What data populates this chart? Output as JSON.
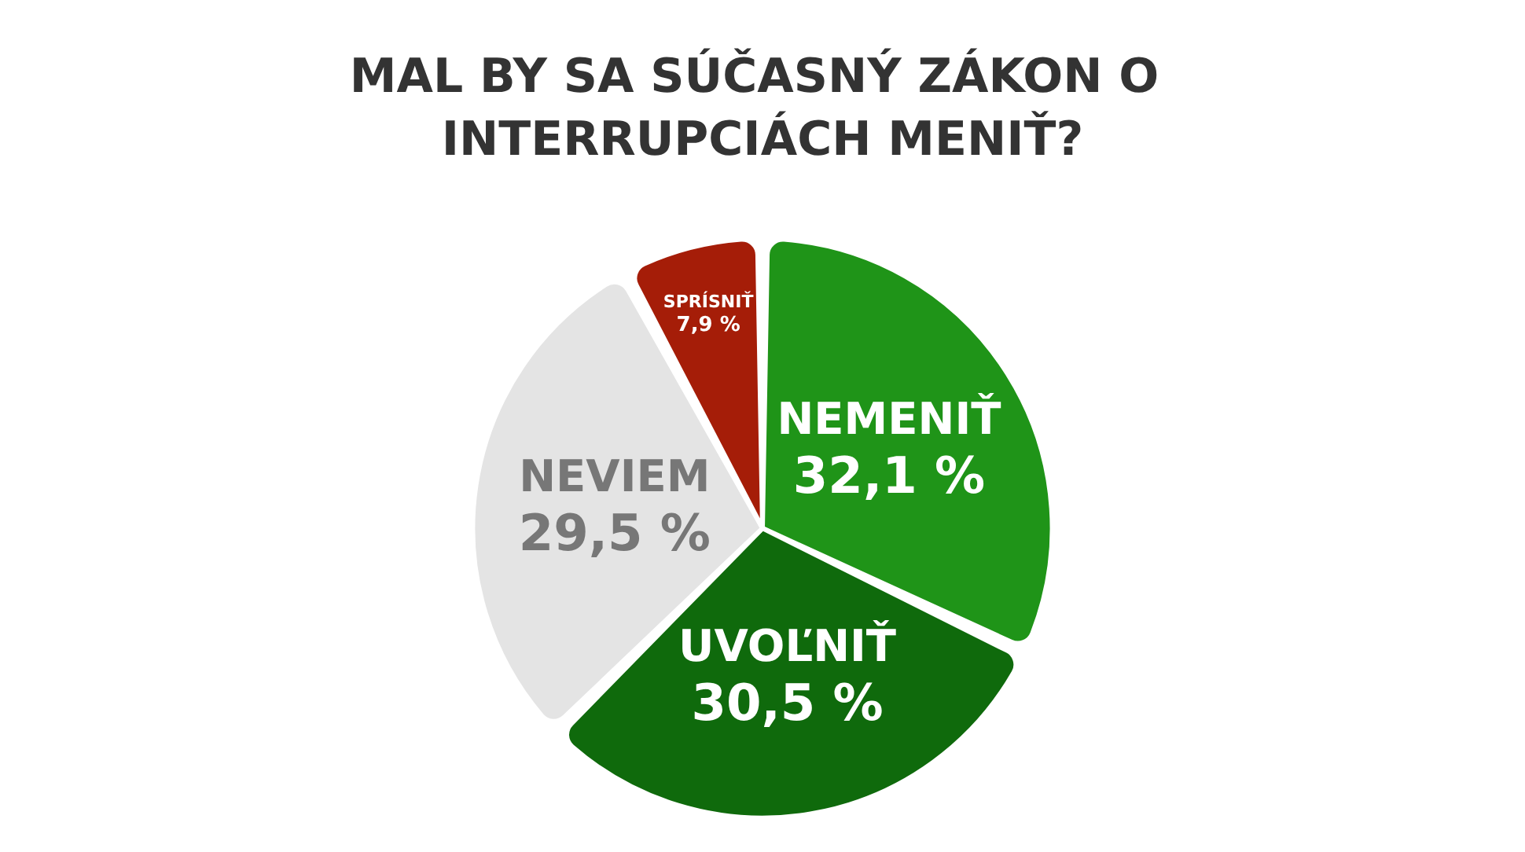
{
  "chart_data": {
    "type": "pie",
    "title": "MAL BY SA SÚČASNÝ ZÁKON O INTERRUPCIÁCH MENIŤ?",
    "categories": [
      "NEMENIŤ",
      "UVOĽNIŤ",
      "NEVIEM",
      "SPRÍSNIŤ"
    ],
    "values": [
      32.1,
      30.5,
      29.5,
      7.9
    ],
    "value_labels": [
      "32,1 %",
      "30,5 %",
      "29,5 %",
      "7,9 %"
    ],
    "colors": [
      "#1f9418",
      "#0f6a0c",
      "#e4e4e4",
      "#a51d08"
    ],
    "legend": false
  }
}
